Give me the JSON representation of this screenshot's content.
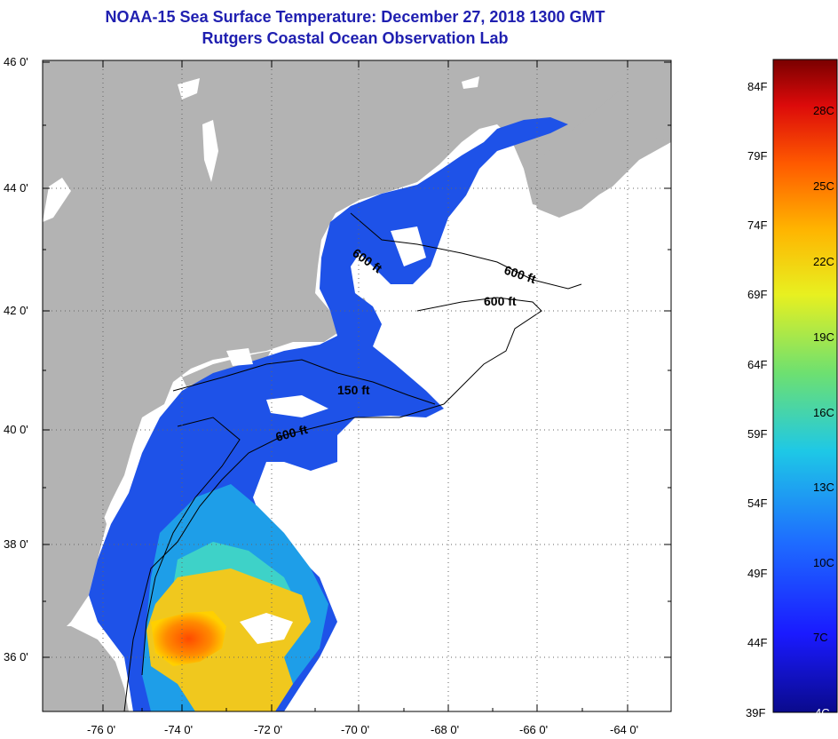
{
  "title": "NOAA-15 Sea Surface Temperature:  December 27, 2018 1300 GMT",
  "subtitle": "Rutgers Coastal Ocean Observation Lab",
  "lat_labels": [
    "46 0'",
    "44 0'",
    "42 0'",
    "40 0'",
    "38 0'",
    "36 0'"
  ],
  "lon_labels": [
    "-76 0'",
    "-74 0'",
    "-72 0'",
    "-70 0'",
    "-68 0'",
    "-66 0'",
    "-64 0'"
  ],
  "contour_labels": [
    "600 ft",
    "600 ft",
    "600 ft",
    "150 ft",
    "600 ft"
  ],
  "colorbar": {
    "fahrenheit": [
      "84F",
      "79F",
      "74F",
      "69F",
      "64F",
      "59F",
      "54F",
      "49F",
      "44F",
      "39F"
    ],
    "celsius": [
      "28C",
      "25C",
      "22C",
      "19C",
      "16C",
      "13C",
      "10C",
      "7C",
      "4C"
    ]
  },
  "colors": {
    "land": "#b3b3b3",
    "title": "#1f1fb0",
    "no_data": "#ffffff"
  }
}
